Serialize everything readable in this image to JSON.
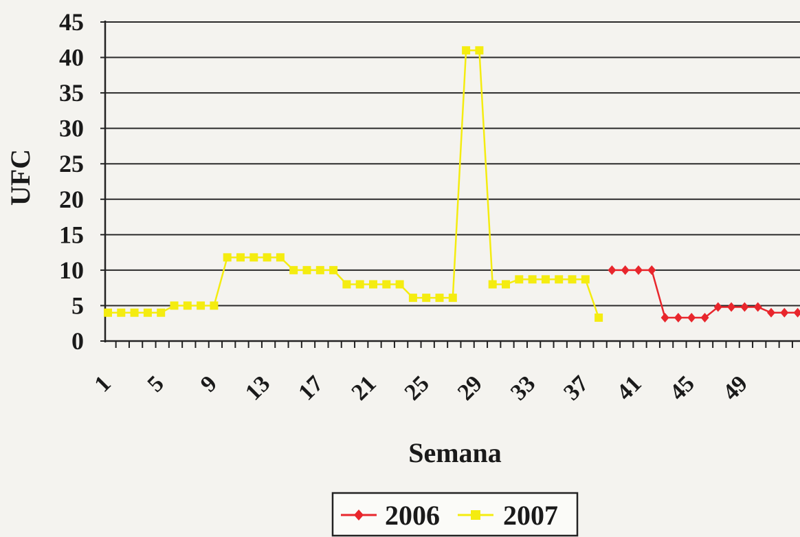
{
  "chart_data": {
    "type": "line",
    "xlabel": "Semana",
    "ylabel": "UFC",
    "x_tick_labels": [
      "1",
      "5",
      "9",
      "13",
      "17",
      "21",
      "25",
      "29",
      "33",
      "37",
      "41",
      "45",
      "49"
    ],
    "y_tick_labels": [
      "0",
      "5",
      "10",
      "15",
      "20",
      "25",
      "30",
      "35",
      "40",
      "45"
    ],
    "ylim": [
      0,
      45
    ],
    "xlim": [
      1,
      52
    ],
    "grid": "horizontal",
    "legend_position": "bottom",
    "series": [
      {
        "name": "2006",
        "color": "#e8262c",
        "marker": "diamond",
        "x": [
          39,
          40,
          41,
          42,
          43,
          44,
          45,
          46,
          47,
          48,
          49,
          50,
          51,
          52,
          53
        ],
        "y": [
          10,
          10,
          10,
          10,
          3.3,
          3.3,
          3.3,
          3.3,
          4.8,
          4.8,
          4.8,
          4.8,
          4,
          4,
          4
        ]
      },
      {
        "name": "2007",
        "color": "#f4ec10",
        "marker": "square",
        "x": [
          1,
          2,
          3,
          4,
          5,
          6,
          7,
          8,
          9,
          10,
          11,
          12,
          13,
          14,
          15,
          16,
          17,
          18,
          19,
          20,
          21,
          22,
          23,
          24,
          25,
          26,
          27,
          28,
          29,
          30,
          31,
          32,
          33,
          34,
          35,
          36,
          37,
          38
        ],
        "y": [
          4,
          4,
          4,
          4,
          4,
          5,
          5,
          5,
          5,
          11.8,
          11.8,
          11.8,
          11.8,
          11.8,
          10,
          10,
          10,
          10,
          8,
          8,
          8,
          8,
          8,
          6.1,
          6.1,
          6.1,
          6.1,
          41,
          41,
          8,
          8,
          8.7,
          8.7,
          8.7,
          8.7,
          8.7,
          8.7,
          3.3
        ]
      }
    ]
  }
}
